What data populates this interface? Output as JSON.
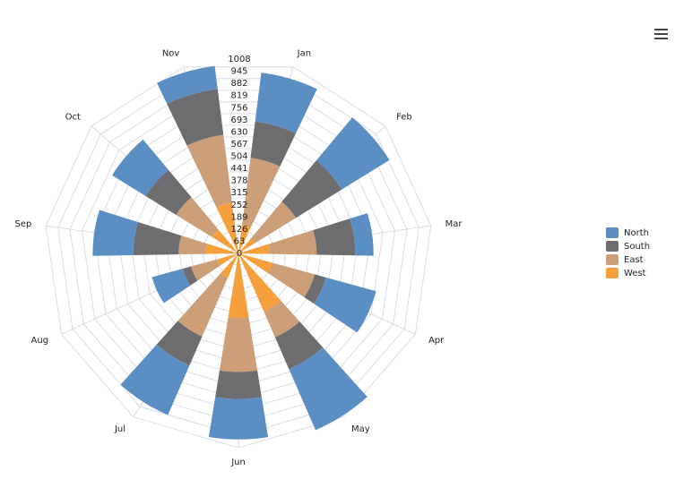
{
  "chart_data": {
    "type": "windrose",
    "categories": [
      "Jan",
      "Feb",
      "Mar",
      "Apr",
      "May",
      "Jun",
      "Jul",
      "Aug",
      "Sep",
      "Oct",
      "Nov"
    ],
    "series": [
      {
        "name": "North",
        "color": "#5b8fc4",
        "values": [
          255,
          290,
          95,
          270,
          345,
          210,
          280,
          165,
          210,
          205,
          120
        ]
      },
      {
        "name": "South",
        "color": "#6d6c6e",
        "values": [
          190,
          280,
          200,
          60,
          180,
          140,
          165,
          45,
          235,
          185,
          240
        ]
      },
      {
        "name": "East",
        "color": "#cc9f78",
        "values": [
          350,
          250,
          245,
          225,
          145,
          280,
          330,
          140,
          140,
          220,
          355
        ]
      },
      {
        "name": "West",
        "color": "#f5a03c",
        "values": [
          150,
          100,
          160,
          185,
          330,
          335,
          140,
          115,
          170,
          160,
          265
        ]
      }
    ],
    "ylim": [
      0,
      1008
    ],
    "yticks": [
      0,
      63,
      126,
      189,
      252,
      315,
      378,
      441,
      504,
      567,
      630,
      693,
      756,
      819,
      882,
      945,
      1008
    ],
    "grid": true,
    "legend": "right"
  }
}
